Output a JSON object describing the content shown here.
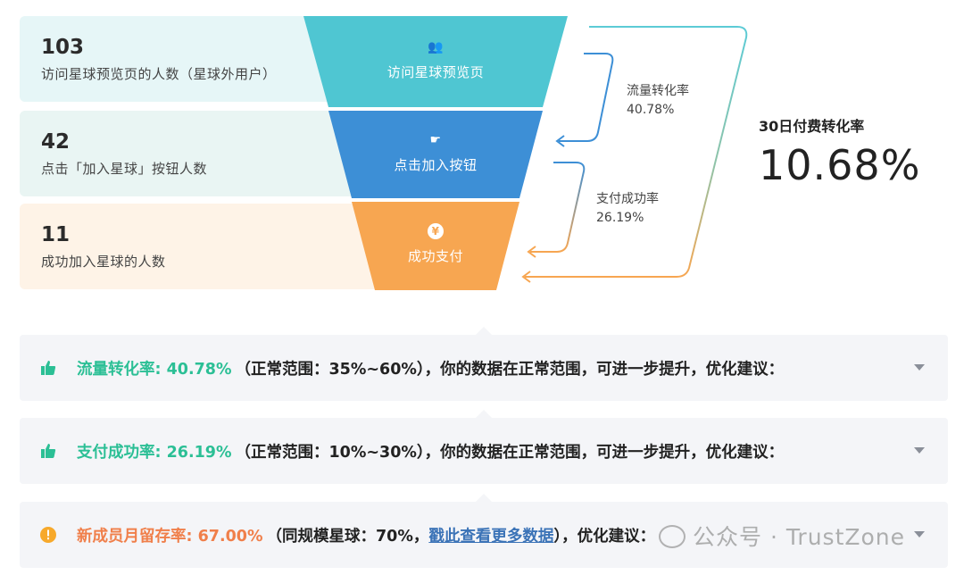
{
  "funnel": {
    "rows": [
      {
        "count": "103",
        "desc": "访问星球预览页的人数（星球外用户）",
        "stage": "访问星球预览页",
        "icon": "users-icon",
        "color": "#4fc6d2"
      },
      {
        "count": "42",
        "desc": "点击「加入星球」按钮人数",
        "stage": "点击加入按钮",
        "icon": "pointer-icon",
        "color": "#3d8fd6"
      },
      {
        "count": "11",
        "desc": "成功加入星球的人数",
        "stage": "成功支付",
        "icon": "yen-icon",
        "color": "#f7a651"
      }
    ],
    "icon_glyphs": {
      "users": "👥",
      "pointer": "☛",
      "yen": "¥"
    }
  },
  "rates": {
    "traffic": {
      "label": "流量转化率",
      "value": "40.78%"
    },
    "payment": {
      "label": "支付成功率",
      "value": "26.19%"
    }
  },
  "summary": {
    "label": "30日付费转化率",
    "value": "10.68%"
  },
  "advice": [
    {
      "icon": "thumbs-up-icon",
      "highlight": "流量转化率: 40.78%",
      "rest": "（正常范围：35%~60%），你的数据在正常范围，可进一步提升，优化建议："
    },
    {
      "icon": "thumbs-up-icon",
      "highlight": "支付成功率: 26.19%",
      "rest": "（正常范围：10%~30%），你的数据在正常范围，可进一步提升，优化建议："
    },
    {
      "icon": "warning-icon",
      "highlight": "新成员月留存率: 67.00%",
      "rest_before": "（同规模星球：70%，",
      "link": "戳此查看更多数据",
      "rest_after": "），优化建议："
    }
  ],
  "watermark": "公众号 · TrustZone",
  "colors": {
    "green": "#2bbf95",
    "orange": "#f07f4a",
    "link": "#3b73b7"
  }
}
